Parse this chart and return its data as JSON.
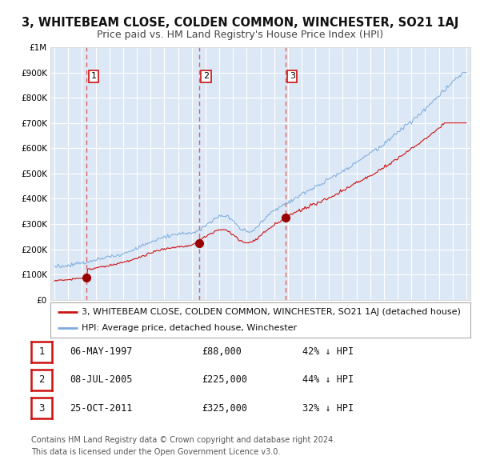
{
  "title": "3, WHITEBEAM CLOSE, COLDEN COMMON, WINCHESTER, SO21 1AJ",
  "subtitle": "Price paid vs. HM Land Registry's House Price Index (HPI)",
  "ylim": [
    0,
    1000000
  ],
  "yticks": [
    0,
    100000,
    200000,
    300000,
    400000,
    500000,
    600000,
    700000,
    800000,
    900000,
    1000000
  ],
  "xlim_start": 1994.7,
  "xlim_end": 2025.3,
  "fig_bg_color": "#ffffff",
  "plot_bg_color": "#dce8f5",
  "grid_color": "#ffffff",
  "hpi_color": "#7aaadd",
  "price_color": "#cc1111",
  "dashed_line_color": "#e06060",
  "sale_marker_color": "#990000",
  "legend_border_color": "#aaaaaa",
  "legend_label_price": "3, WHITEBEAM CLOSE, COLDEN COMMON, WINCHESTER, SO21 1AJ (detached house)",
  "legend_label_hpi": "HPI: Average price, detached house, Winchester",
  "sales": [
    {
      "num": 1,
      "date_label": "06-MAY-1997",
      "date_x": 1997.35,
      "price": 88000,
      "pct": "42% ↓ HPI"
    },
    {
      "num": 2,
      "date_label": "08-JUL-2005",
      "date_x": 2005.52,
      "price": 225000,
      "pct": "44% ↓ HPI"
    },
    {
      "num": 3,
      "date_label": "25-OCT-2011",
      "date_x": 2011.81,
      "price": 325000,
      "pct": "32% ↓ HPI"
    }
  ],
  "footnote": "Contains HM Land Registry data © Crown copyright and database right 2024.\nThis data is licensed under the Open Government Licence v3.0.",
  "title_fontsize": 10.5,
  "subtitle_fontsize": 9,
  "tick_fontsize": 7.5,
  "legend_fontsize": 8,
  "table_fontsize": 8.5,
  "footnote_fontsize": 7
}
